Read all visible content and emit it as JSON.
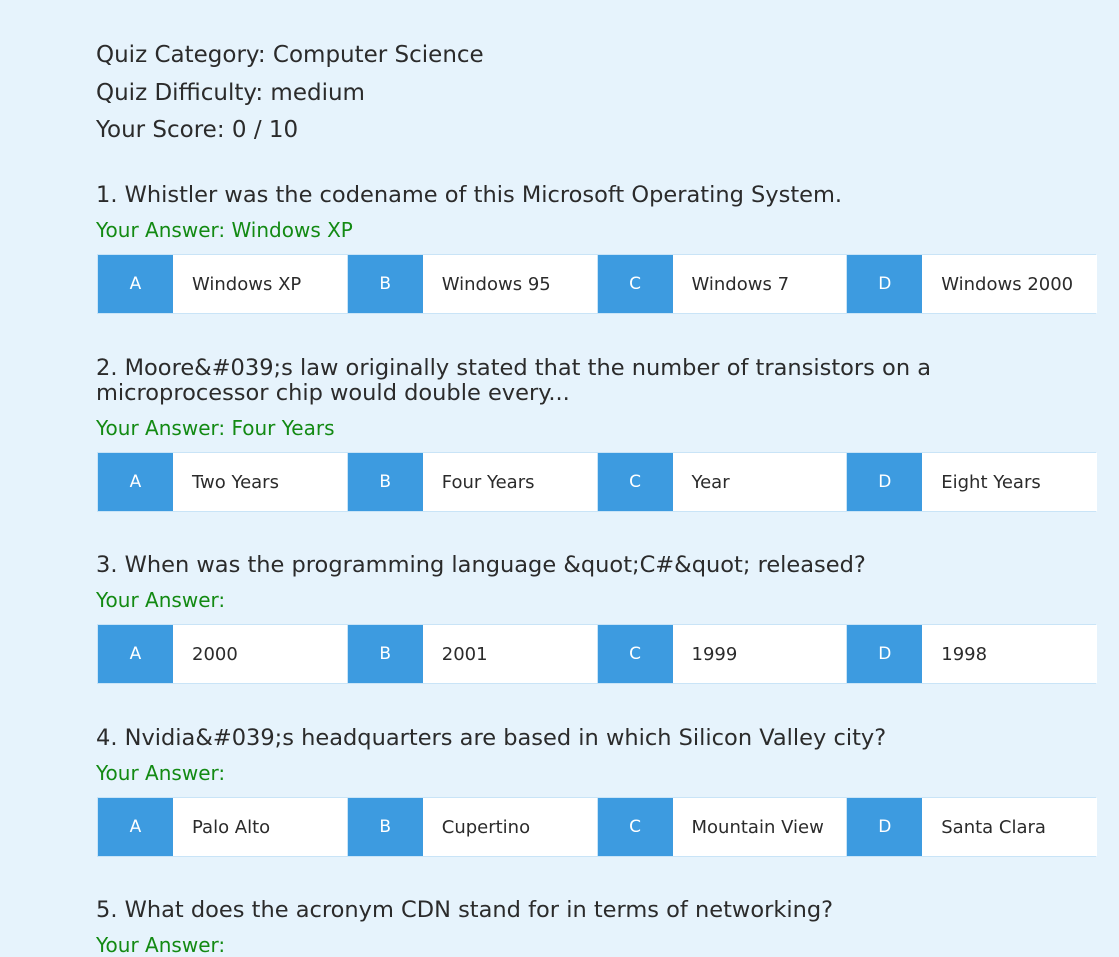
{
  "meta": {
    "category": "Quiz Category: Computer Science",
    "difficulty": "Quiz Difficulty: medium",
    "score": "Your Score: 0 / 10"
  },
  "questions": [
    {
      "text": "1. Whistler was the codename of this Microsoft Operating System.",
      "your_answer": "Your Answer: Windows XP",
      "options": [
        {
          "letter": "A",
          "text": "Windows XP"
        },
        {
          "letter": "B",
          "text": "Windows 95"
        },
        {
          "letter": "C",
          "text": "Windows 7"
        },
        {
          "letter": "D",
          "text": "Windows 2000"
        }
      ]
    },
    {
      "text": "2. Moore&#039;s law originally stated that the number of transistors on a microprocessor chip would double every...",
      "your_answer": "Your Answer: Four Years",
      "options": [
        {
          "letter": "A",
          "text": "Two Years"
        },
        {
          "letter": "B",
          "text": "Four Years"
        },
        {
          "letter": "C",
          "text": "Year"
        },
        {
          "letter": "D",
          "text": "Eight Years"
        }
      ]
    },
    {
      "text": "3. When was the programming language &quot;C#&quot; released?",
      "your_answer": "Your Answer:",
      "options": [
        {
          "letter": "A",
          "text": "2000"
        },
        {
          "letter": "B",
          "text": "2001"
        },
        {
          "letter": "C",
          "text": "1999"
        },
        {
          "letter": "D",
          "text": "1998"
        }
      ]
    },
    {
      "text": "4. Nvidia&#039;s headquarters are based in which Silicon Valley city?",
      "your_answer": "Your Answer:",
      "options": [
        {
          "letter": "A",
          "text": "Palo Alto"
        },
        {
          "letter": "B",
          "text": "Cupertino"
        },
        {
          "letter": "C",
          "text": "Mountain View"
        },
        {
          "letter": "D",
          "text": "Santa Clara"
        }
      ]
    },
    {
      "text": "5. What does the acronym CDN stand for in terms of networking?",
      "your_answer": "Your Answer:"
    }
  ],
  "colors": {
    "background": "#e6f3fc",
    "letter_bg": "#3d9be0",
    "answer_green": "#138a13",
    "border": "#c9e4f7"
  }
}
